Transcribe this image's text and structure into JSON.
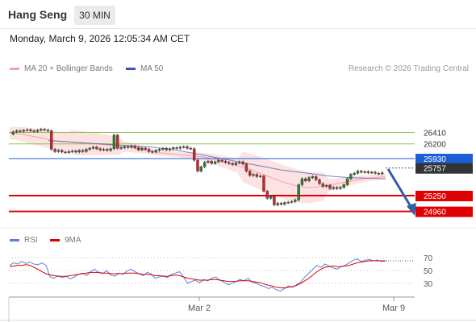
{
  "header": {
    "title": "Hang Seng",
    "timeframe": "30 MIN",
    "datetime": "Monday, March 9, 2026 12:05:34 AM CET"
  },
  "legend": {
    "bollinger_label": "MA 20 + Bollinger Bands",
    "ma50_label": "MA 50",
    "credit": "Research © 2026 Trading Central",
    "rsi_label": "RSI",
    "ma9_label": "9MA"
  },
  "colors": {
    "up_candle": "#2e7d32",
    "down_candle": "#c62828",
    "bollinger": "#f7a1a1",
    "ma50": "#3f51b5",
    "resistance": "#8bc34a",
    "support": "#e00000",
    "pivot": "#1a5fd6",
    "last": "#333333",
    "rsi": "#5b7fdc",
    "rsi_ma": "#e00000"
  },
  "chart_data": [
    {
      "type": "candlestick",
      "x_ticks": [
        "Mar 2",
        "Mar 9"
      ],
      "ylim": [
        24800,
        26800
      ],
      "price_path": [
        26380,
        26420,
        26440,
        26430,
        26450,
        26460,
        26440,
        26430,
        26450,
        26470,
        26455,
        26440,
        26100,
        26060,
        26080,
        26050,
        26040,
        26060,
        26070,
        26050,
        26080,
        26060,
        26100,
        26120,
        26140,
        26110,
        26090,
        26100,
        26080,
        26110,
        26360,
        26120,
        26130,
        26150,
        26140,
        26160,
        26130,
        26090,
        26120,
        26100,
        26060,
        26050,
        26080,
        26100,
        26120,
        26090,
        26110,
        26130,
        26120,
        26140,
        26150,
        26120,
        26110,
        25900,
        25700,
        25780,
        25860,
        25880,
        25840,
        25870,
        25900,
        25880,
        25860,
        25840,
        25820,
        25850,
        25870,
        25830,
        25700,
        25620,
        25640,
        25600,
        25610,
        25330,
        25200,
        25240,
        25080,
        25110,
        25090,
        25120,
        25130,
        25140,
        25170,
        25450,
        25560,
        25520,
        25580,
        25600,
        25540,
        25470,
        25420,
        25440,
        25380,
        25400,
        25380,
        25400,
        25450,
        25560,
        25640,
        25660,
        25700,
        25680,
        25690,
        25670,
        25680,
        25660,
        25650,
        25670
      ],
      "bollinger_mid": [
        26400,
        26390,
        26380,
        26360,
        26340,
        26320,
        26300,
        26280,
        26260,
        26250,
        26240,
        26230,
        26220,
        26210,
        26200,
        26200,
        26190,
        26180,
        26170,
        26160,
        26150,
        26140,
        26120,
        26100,
        26080,
        26060,
        26040,
        26030,
        26020,
        26010,
        26000,
        25990,
        25980,
        25970,
        25960,
        25940,
        25920,
        25890,
        25860,
        25830,
        25800,
        25770,
        25740,
        25700,
        25660,
        25620,
        25580,
        25540,
        25500,
        25470,
        25440,
        25420,
        25400,
        25400,
        25410,
        25420,
        25440,
        25460,
        25480,
        25500,
        25520,
        25540,
        25560,
        25570,
        25580,
        25590,
        25600
      ],
      "ma50": [
        26260,
        26250,
        26240,
        26230,
        26220,
        26210,
        26200,
        26190,
        26180,
        26170,
        26160,
        26150,
        26140,
        26120,
        26100,
        26080,
        26050,
        26020,
        25990,
        25960,
        25930,
        25900,
        25870,
        25840,
        25810,
        25780,
        25750,
        25720,
        25700,
        25680,
        25660,
        25640,
        25620,
        25600,
        25590,
        25580,
        25575,
        25570,
        25565,
        25560
      ],
      "levels": [
        {
          "label": "26410",
          "value": 26410,
          "kind": "resistance"
        },
        {
          "label": "26200",
          "value": 26200,
          "kind": "resistance"
        },
        {
          "label": "25930",
          "value": 25930,
          "kind": "pivot"
        },
        {
          "label": "25757",
          "value": 25757,
          "kind": "last"
        },
        {
          "label": "25250",
          "value": 25250,
          "kind": "support"
        },
        {
          "label": "24960",
          "value": 24960,
          "kind": "support"
        }
      ]
    },
    {
      "type": "line",
      "name": "RSI",
      "ylim": [
        10,
        80
      ],
      "y_ticks": [
        "70",
        "50",
        "30"
      ],
      "rsi": [
        58,
        62,
        60,
        64,
        61,
        63,
        60,
        59,
        62,
        58,
        40,
        38,
        42,
        39,
        41,
        37,
        40,
        44,
        46,
        42,
        48,
        52,
        47,
        45,
        50,
        43,
        41,
        46,
        44,
        49,
        52,
        48,
        45,
        42,
        47,
        45,
        38,
        40,
        42,
        39,
        44,
        46,
        48,
        40,
        30,
        33,
        35,
        31,
        36,
        34,
        38,
        40,
        35,
        32,
        28,
        30,
        33,
        36,
        34,
        38,
        32,
        30,
        27,
        25,
        22,
        24,
        20,
        18,
        22,
        26,
        24,
        28,
        32,
        40,
        46,
        52,
        58,
        55,
        60,
        57,
        54,
        52,
        56,
        58,
        62,
        66,
        68,
        64,
        66,
        67,
        65,
        66,
        64,
        65
      ],
      "rsi_ma": [
        56,
        57,
        58,
        58,
        59,
        58,
        55,
        52,
        48,
        45,
        43,
        42,
        41,
        41,
        41,
        42,
        43,
        44,
        45,
        46,
        47,
        47,
        47,
        46,
        46,
        45,
        45,
        45,
        45,
        46,
        46,
        46,
        45,
        44,
        44,
        43,
        42,
        42,
        41,
        41,
        42,
        43,
        42,
        40,
        38,
        37,
        36,
        35,
        35,
        35,
        36,
        36,
        35,
        34,
        33,
        33,
        33,
        34,
        34,
        34,
        33,
        32,
        31,
        29,
        27,
        26,
        24,
        23,
        23,
        24,
        25,
        27,
        30,
        34,
        38,
        43,
        48,
        52,
        55,
        56,
        57,
        56,
        56,
        57,
        58,
        60,
        62,
        63,
        64,
        65,
        65,
        65,
        65,
        65
      ]
    }
  ]
}
